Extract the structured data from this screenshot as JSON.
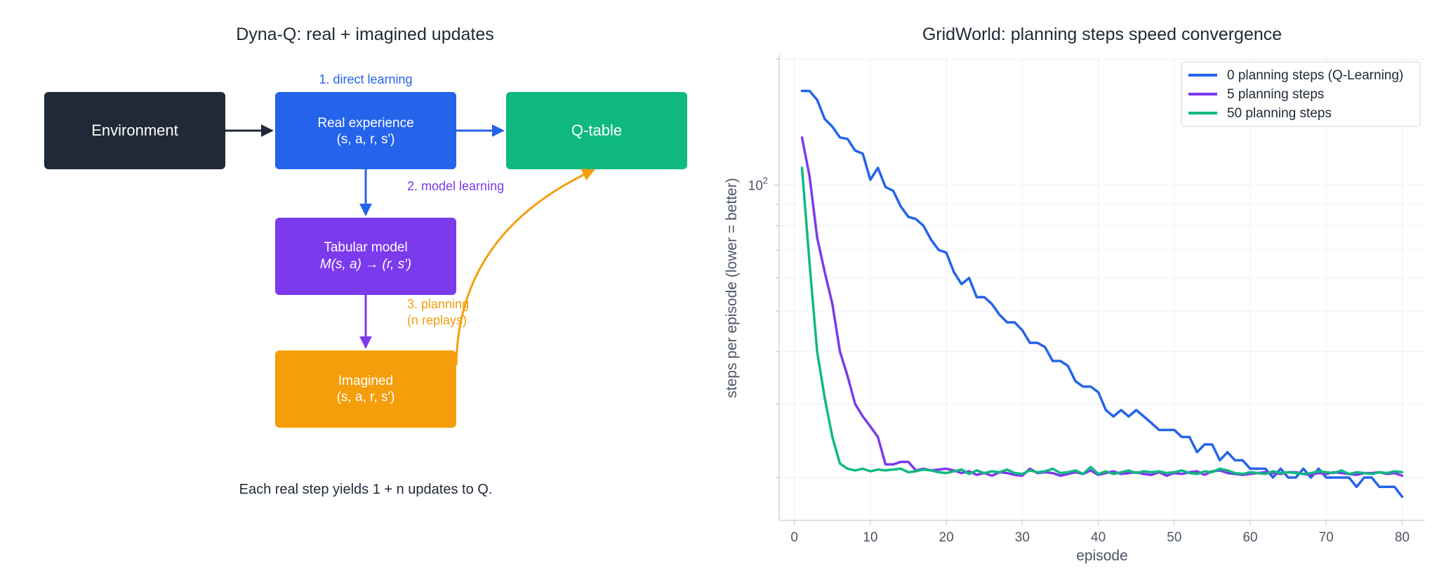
{
  "colors": {
    "environment": "#1f2937",
    "real": "#2563eb",
    "qtable": "#10b981",
    "model": "#7c3aed",
    "imagined": "#f59e0b",
    "grid": "#eef0f4",
    "axis": "#cbd5e1"
  },
  "diagram": {
    "title": "Dyna-Q: real + imagined updates",
    "boxes": {
      "environment": {
        "line1": "Environment"
      },
      "real": {
        "line1": "Real experience",
        "line2": "(s, a, r, s')"
      },
      "qtable": {
        "line1": "Q-table"
      },
      "model": {
        "line1": "Tabular model",
        "line2": "M(s, a) → (r, s′)"
      },
      "imagined": {
        "line1": "Imagined",
        "line2": "(s, a, r, s')"
      }
    },
    "labels": {
      "direct": "1. direct learning",
      "model_learning": "2. model learning",
      "planning_line1": "3. planning",
      "planning_line2": "(n replays)"
    },
    "caption": "Each real step yields  1 + n  updates to Q."
  },
  "chart_data": {
    "type": "line",
    "title": "GridWorld: planning steps speed convergence",
    "xlabel": "episode",
    "ylabel": "steps per episode (lower = better)",
    "yscale": "log",
    "xlim": [
      -2,
      83
    ],
    "ylim": [
      15.8,
      205
    ],
    "xticks": [
      0,
      10,
      20,
      30,
      40,
      50,
      60,
      70,
      80
    ],
    "ytick_label": {
      "base": "10",
      "exp": "2",
      "value": 100
    },
    "legend_position": "top-right",
    "grid": true,
    "x_start": 1,
    "series": [
      {
        "name": "0 planning steps (Q-Learning)",
        "color": "#2563eb",
        "values": [
          168,
          168,
          160,
          144,
          138,
          130,
          129,
          121,
          119,
          103,
          110,
          99,
          97,
          89,
          84,
          83,
          80,
          74,
          70,
          69,
          62,
          58,
          60,
          54,
          54,
          52,
          49,
          47,
          47,
          45,
          42,
          42,
          41,
          38,
          38,
          37,
          34,
          33,
          33,
          32,
          29,
          28,
          29,
          28,
          29,
          28,
          27,
          26,
          26,
          26,
          25,
          25,
          23,
          24,
          24,
          22,
          23,
          22,
          22,
          21,
          21,
          21,
          20,
          21,
          20,
          20,
          21,
          20,
          21,
          20,
          20,
          20,
          20,
          19,
          20,
          20,
          19,
          19,
          19,
          18
        ]
      },
      {
        "name": "5 planning steps",
        "color": "#7c3aed",
        "values": [
          130,
          105,
          75,
          62,
          52,
          40,
          35,
          30,
          28,
          26.5,
          25,
          21.5,
          21.5,
          21.8,
          21.8,
          20.8,
          21,
          20.8,
          20.9,
          21,
          20.8,
          20.5,
          20.7,
          20.3,
          20.5,
          20.2,
          20.6,
          20.5,
          20.3,
          20.2,
          21,
          20.5,
          20.6,
          20.5,
          20.2,
          20.4,
          20.6,
          20.4,
          20.8,
          20.3,
          20.5,
          20.7,
          20.4,
          20.5,
          20.6,
          20.4,
          20.3,
          20.6,
          20.2,
          20.5,
          20.4,
          20.6,
          20.7,
          20.3,
          20.7,
          20.8,
          20.5,
          20.4,
          20.3,
          20.4,
          20.5,
          20.6,
          20.5,
          20.4,
          20.6,
          20.6,
          20.4,
          20.3,
          20.5,
          20.4,
          20.6,
          20.5,
          20.4,
          20.3,
          20.5,
          20.5,
          20.6,
          20.4,
          20.5,
          20.2
        ]
      },
      {
        "name": "50 planning steps",
        "color": "#10b981",
        "values": [
          110,
          65,
          40,
          31,
          25,
          21.6,
          21,
          20.8,
          21,
          20.7,
          20.9,
          20.8,
          20.9,
          21,
          20.6,
          20.7,
          20.9,
          20.8,
          20.6,
          20.5,
          20.7,
          20.9,
          20.4,
          20.8,
          20.5,
          20.7,
          20.6,
          20.9,
          20.5,
          20.4,
          20.8,
          20.6,
          20.7,
          21,
          20.5,
          20.6,
          20.8,
          20.4,
          21.2,
          20.4,
          20.7,
          20.4,
          20.6,
          20.8,
          20.5,
          20.7,
          20.6,
          20.7,
          20.5,
          20.6,
          20.8,
          20.5,
          20.4,
          20.7,
          20.6,
          21,
          20.8,
          20.5,
          20.4,
          20.6,
          20.5,
          20.4,
          20.7,
          20.5,
          20.6,
          20.5,
          20.4,
          20.5,
          20.7,
          20.6,
          20.5,
          20.8,
          20.4,
          20.6,
          20.5,
          20.4,
          20.6,
          20.5,
          20.7,
          20.6
        ]
      }
    ]
  }
}
